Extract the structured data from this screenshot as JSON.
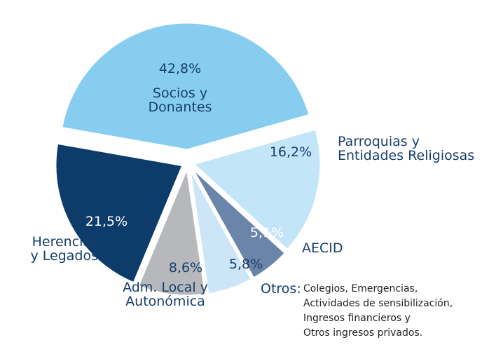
{
  "chart_data": {
    "type": "pie",
    "categories": [
      "Socios y\nDonantes",
      "Parroquias y\nEntidades Religiosas",
      "AECID",
      "Otros:",
      "Adm. Local y\nAutonómica",
      "Herencias\ny Legados"
    ],
    "values": [
      42.8,
      16.2,
      5.1,
      5.8,
      8.6,
      21.5
    ],
    "value_labels": [
      "42,8%",
      "16,2%",
      "5,1%",
      "5,8%",
      "8,6%",
      "21,5%"
    ],
    "colors": [
      "#87cdf0",
      "#c3e5f8",
      "#6a84aa",
      "#cde6f7",
      "#b6b8bc",
      "#0d3c6b"
    ],
    "annotations": [
      "Colegios, Emergencias,\nActividades de sensibilización,\nIngresos financieros y\nOtros ingresos privados."
    ]
  }
}
